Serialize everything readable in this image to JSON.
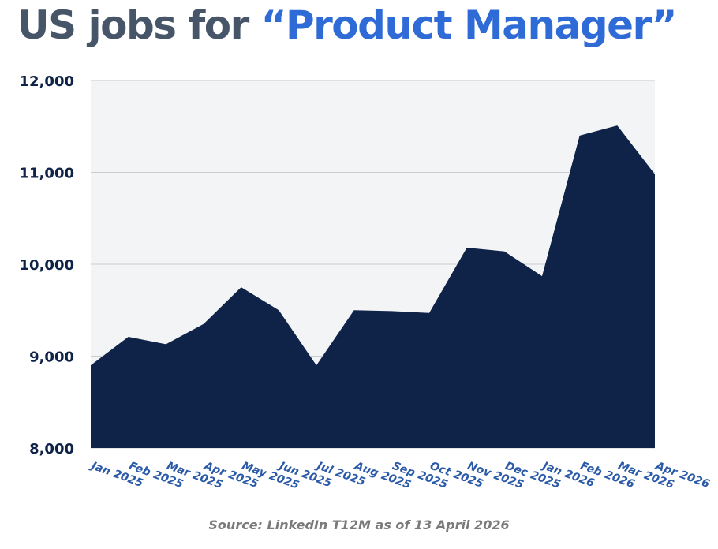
{
  "header": {
    "title_prefix": "US jobs for ",
    "title_highlight": "“Product Manager”"
  },
  "colors": {
    "area": "#0f2247",
    "plot_background": "#f3f4f6",
    "gridline": "#c8cbd0",
    "title_prefix": "#475569",
    "title_highlight": "#2f6bd6",
    "x_tick": "#2b5aa8",
    "y_tick": "#0f2247"
  },
  "chart_data": {
    "type": "area",
    "title": "US jobs for “Product Manager”",
    "xlabel": "",
    "ylabel": "",
    "categories": [
      "Jan 2025",
      "Feb 2025",
      "Mar 2025",
      "Apr 2025",
      "May 2025",
      "Jun 2025",
      "Jul 2025",
      "Aug 2025",
      "Sep 2025",
      "Oct 2025",
      "Nov 2025",
      "Dec 2025",
      "Jan 2026",
      "Feb 2026",
      "Mar 2026",
      "Apr 2026"
    ],
    "values": [
      8900,
      9210,
      9130,
      9350,
      9750,
      9500,
      8900,
      9500,
      9490,
      9470,
      10180,
      10140,
      9870,
      11400,
      11510,
      10980
    ],
    "ylim": [
      8000,
      12000
    ],
    "yticks": [
      8000,
      9000,
      10000,
      11000,
      12000
    ],
    "ytick_labels": [
      "8,000",
      "9,000",
      "10,000",
      "11,000",
      "12,000"
    ],
    "grid": true,
    "legend": "none"
  },
  "footer": {
    "source": "Source: LinkedIn T12M as of 13 April 2026"
  }
}
